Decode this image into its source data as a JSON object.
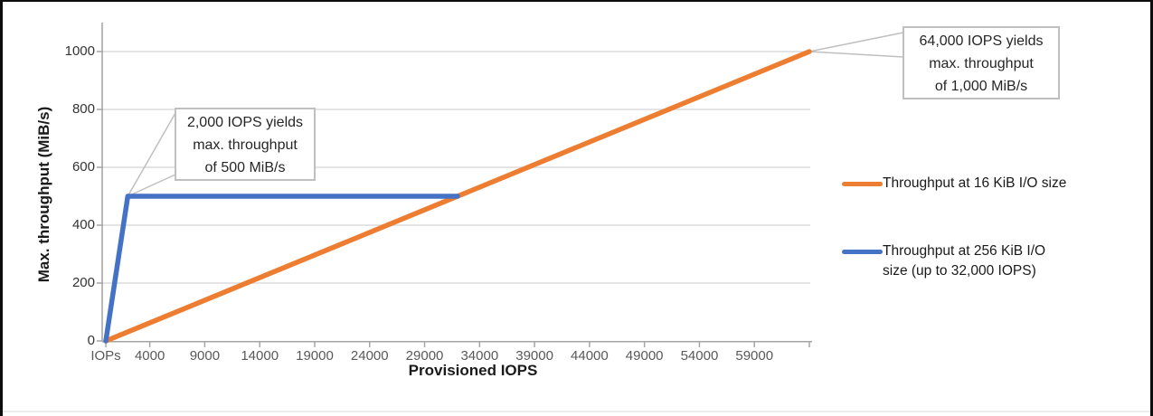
{
  "colors": {
    "orange": "#ED7D31",
    "blue": "#4472C4",
    "gridline": "#DBDBDB",
    "axis": "#A6A6A6",
    "leader": "#BFBFBF",
    "callout_border": "#BFBFBF",
    "frame_border": "#0D0D0D"
  },
  "chart_data": {
    "type": "line",
    "title": "",
    "xlabel": "Provisioned IOPS",
    "ylabel": "Max. throughput (MiB/s)",
    "xlim": [
      0,
      64200
    ],
    "ylim": [
      0,
      1000
    ],
    "grid": "horizontal gridlines at y ticks, light gray",
    "legend_position": "right",
    "x_ticks": [
      {
        "value": 0,
        "label": "IOPs"
      },
      {
        "value": 4000,
        "label": "4000"
      },
      {
        "value": 9000,
        "label": "9000"
      },
      {
        "value": 14000,
        "label": "14000"
      },
      {
        "value": 19000,
        "label": "19000"
      },
      {
        "value": 24000,
        "label": "24000"
      },
      {
        "value": 29000,
        "label": "29000"
      },
      {
        "value": 34000,
        "label": "34000"
      },
      {
        "value": 39000,
        "label": "39000"
      },
      {
        "value": 44000,
        "label": "44000"
      },
      {
        "value": 49000,
        "label": "49000"
      },
      {
        "value": 54000,
        "label": "54000"
      },
      {
        "value": 59000,
        "label": "59000"
      },
      {
        "value": 64000,
        "label": ""
      }
    ],
    "y_ticks": [
      {
        "value": 0,
        "label": "0"
      },
      {
        "value": 200,
        "label": "200"
      },
      {
        "value": 400,
        "label": "400"
      },
      {
        "value": 600,
        "label": "600"
      },
      {
        "value": 800,
        "label": "800"
      },
      {
        "value": 1000,
        "label": "1000"
      }
    ],
    "series": [
      {
        "name": "Throughput at 16 KiB I/O size",
        "color": "#ED7D31",
        "points": [
          [
            0,
            0
          ],
          [
            64000,
            1000
          ]
        ]
      },
      {
        "name": "Throughput at 256 KiB I/O size (up to 32,000 IOPS)",
        "color": "#4472C4",
        "points": [
          [
            0,
            0
          ],
          [
            2000,
            500
          ],
          [
            32000,
            500
          ]
        ]
      }
    ],
    "annotations": [
      {
        "id": "callout-2000-iops",
        "lines": [
          "2,000 IOPS yields",
          "max. throughput",
          "of 500 MiB/s"
        ],
        "anchor": [
          2000,
          500
        ]
      },
      {
        "id": "callout-64000-iops",
        "lines": [
          "64,000 IOPS yields",
          "max. throughput",
          "of 1,000 MiB/s"
        ],
        "anchor": [
          64000,
          1000
        ]
      }
    ],
    "legend": [
      {
        "color": "#ED7D31",
        "lines": [
          "Throughput at 16 KiB I/O size"
        ]
      },
      {
        "color": "#4472C4",
        "lines": [
          "Throughput at 256 KiB I/O",
          "size (up to 32,000 IOPS)"
        ]
      }
    ]
  }
}
